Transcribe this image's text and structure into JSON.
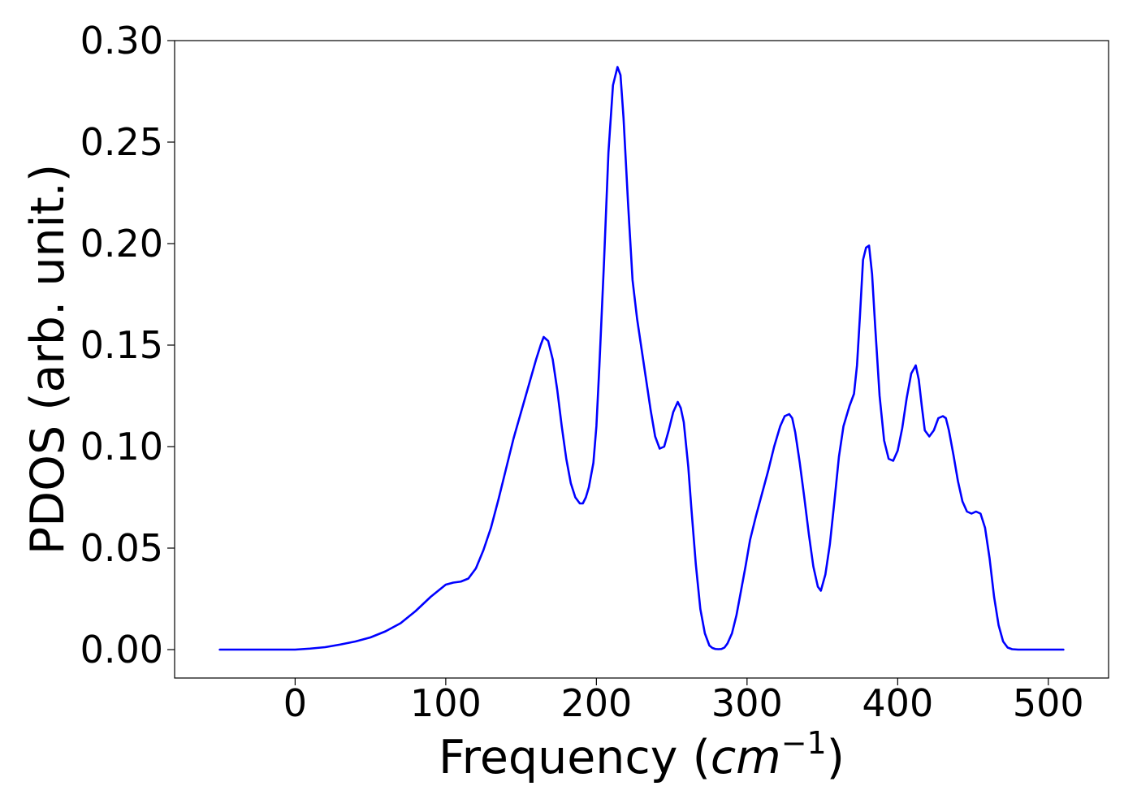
{
  "chart_data": {
    "type": "line",
    "title": "",
    "xlabel_prefix": "Frequency (",
    "xlabel_unit": "cm",
    "xlabel_exponent": "−1",
    "xlabel_suffix": ")",
    "ylabel": "PDOS (arb. unit.)",
    "xlim": [
      -80,
      540
    ],
    "ylim": [
      -0.014,
      0.3
    ],
    "xticks": [
      0,
      100,
      200,
      300,
      400,
      500
    ],
    "xtick_labels": [
      "0",
      "100",
      "200",
      "300",
      "400",
      "500"
    ],
    "yticks": [
      0.0,
      0.05,
      0.1,
      0.15,
      0.2,
      0.25,
      0.3
    ],
    "ytick_labels": [
      "0.00",
      "0.05",
      "0.10",
      "0.15",
      "0.20",
      "0.25",
      "0.30"
    ],
    "grid": false,
    "legend": false,
    "series": [
      {
        "color": "#0000ff",
        "x": [
          -50,
          -30,
          -10,
          0,
          10,
          20,
          30,
          40,
          50,
          60,
          70,
          80,
          90,
          100,
          105,
          110,
          115,
          120,
          125,
          130,
          135,
          140,
          145,
          150,
          155,
          160,
          163,
          165,
          168,
          171,
          174,
          177,
          180,
          183,
          186,
          189,
          191,
          193,
          195,
          198,
          200,
          202,
          205,
          208,
          211,
          214,
          216,
          218,
          221,
          224,
          227,
          230,
          233,
          236,
          239,
          242,
          245,
          248,
          251,
          254,
          256,
          258,
          261,
          263,
          266,
          269,
          272,
          275,
          277,
          279,
          281,
          283,
          285,
          287,
          290,
          293,
          296,
          299,
          302,
          306,
          310,
          314,
          318,
          322,
          325,
          328,
          330,
          332,
          335,
          338,
          341,
          344,
          347,
          349,
          352,
          355,
          358,
          361,
          364,
          368,
          371,
          373,
          375,
          377,
          379,
          381,
          383,
          385,
          388,
          391,
          394,
          397,
          400,
          403,
          406,
          409,
          412,
          414,
          416,
          418,
          421,
          424,
          427,
          430,
          432,
          434,
          437,
          440,
          443,
          446,
          449,
          452,
          455,
          458,
          461,
          464,
          467,
          470,
          473,
          476,
          480,
          490,
          500,
          510
        ],
        "y": [
          0,
          0,
          0,
          0,
          0.0005,
          0.0012,
          0.0025,
          0.004,
          0.006,
          0.009,
          0.013,
          0.019,
          0.026,
          0.032,
          0.033,
          0.0335,
          0.035,
          0.04,
          0.049,
          0.06,
          0.074,
          0.089,
          0.104,
          0.117,
          0.13,
          0.143,
          0.15,
          0.154,
          0.152,
          0.143,
          0.128,
          0.11,
          0.094,
          0.082,
          0.075,
          0.072,
          0.072,
          0.075,
          0.08,
          0.092,
          0.11,
          0.14,
          0.19,
          0.245,
          0.278,
          0.287,
          0.283,
          0.262,
          0.22,
          0.182,
          0.163,
          0.148,
          0.133,
          0.118,
          0.105,
          0.099,
          0.1,
          0.108,
          0.117,
          0.122,
          0.119,
          0.112,
          0.09,
          0.07,
          0.042,
          0.02,
          0.008,
          0.002,
          0.0008,
          0.0003,
          0.0002,
          0.0003,
          0.001,
          0.003,
          0.008,
          0.017,
          0.029,
          0.041,
          0.054,
          0.066,
          0.077,
          0.088,
          0.1,
          0.11,
          0.115,
          0.116,
          0.114,
          0.107,
          0.092,
          0.075,
          0.057,
          0.041,
          0.031,
          0.029,
          0.037,
          0.052,
          0.073,
          0.095,
          0.11,
          0.12,
          0.126,
          0.14,
          0.165,
          0.192,
          0.198,
          0.199,
          0.185,
          0.16,
          0.125,
          0.103,
          0.094,
          0.093,
          0.098,
          0.109,
          0.124,
          0.136,
          0.14,
          0.133,
          0.12,
          0.108,
          0.105,
          0.108,
          0.114,
          0.115,
          0.114,
          0.108,
          0.096,
          0.083,
          0.073,
          0.068,
          0.067,
          0.068,
          0.067,
          0.06,
          0.045,
          0.026,
          0.012,
          0.004,
          0.001,
          0.0002,
          0,
          0,
          0,
          0
        ]
      }
    ]
  }
}
